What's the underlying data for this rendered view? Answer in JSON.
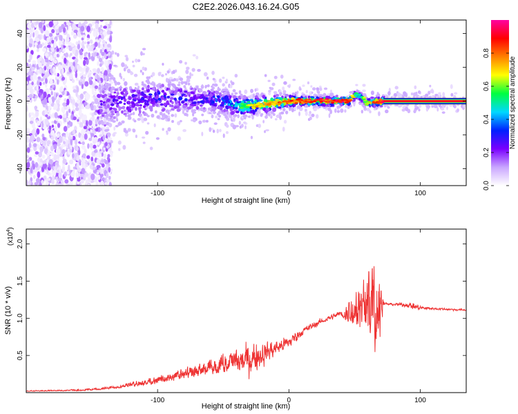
{
  "title": "C2E2.2026.043.16.24.G05",
  "chart_data": [
    {
      "type": "heatmap",
      "name": "spectrogram",
      "xlabel": "Height of straight line (km)",
      "ylabel": "Frequency (Hz)",
      "xlim": [
        -200,
        135
      ],
      "ylim": [
        -50,
        48
      ],
      "x_ticks": [
        -100,
        0,
        100
      ],
      "y_ticks": [
        -40,
        -20,
        0,
        20,
        40
      ],
      "colorbar": {
        "label": "Normalized spectral amplitude",
        "range": [
          0,
          1
        ],
        "ticks": [
          0.0,
          0.2,
          0.4,
          0.6,
          0.8
        ],
        "tick_labels": [
          "0.0",
          "0.2",
          "0.4",
          "0.6",
          "0.8"
        ],
        "colors": [
          "#ffffff",
          "#c9a6ff",
          "#7a00ff",
          "#0020ff",
          "#00d8ff",
          "#00ff40",
          "#ffff00",
          "#ff8000",
          "#ff0000",
          "#ff00a0"
        ]
      },
      "ridge": {
        "description": "dominant frequency ridge near 0 Hz",
        "x": [
          -145,
          -100,
          -60,
          -35,
          -20,
          0,
          20,
          45,
          52,
          60,
          72,
          135
        ],
        "y": [
          -2,
          2,
          1,
          -3,
          -2,
          0,
          0,
          0,
          4,
          -1,
          0,
          0
        ],
        "peak_amplitude": [
          0.25,
          0.35,
          0.35,
          0.6,
          0.8,
          0.85,
          0.95,
          0.95,
          0.5,
          0.7,
          1.0,
          1.0
        ]
      }
    },
    {
      "type": "line",
      "name": "snr",
      "xlabel": "Height of straight line (km)",
      "ylabel": "SNR (10 * v/v)",
      "y_multiplier": "(x10⁴)",
      "y_multiplier_base": "(x10",
      "y_multiplier_exp": "4",
      "y_multiplier_close": ")",
      "xlim": [
        -200,
        135
      ],
      "ylim": [
        0,
        2.2
      ],
      "x_ticks": [
        -100,
        0,
        100
      ],
      "y_ticks": [
        0.5,
        1.0,
        1.5,
        2.0
      ],
      "y_tick_labels": [
        "0.5",
        "1.0",
        "1.5",
        "2.0"
      ],
      "color": "#ee3333",
      "envelope": {
        "x": [
          -200,
          -160,
          -140,
          -120,
          -100,
          -80,
          -60,
          -40,
          -30,
          -20,
          -10,
          0,
          10,
          20,
          30,
          40,
          50,
          55,
          60,
          65,
          70,
          72,
          75,
          90,
          95,
          100,
          110,
          135
        ],
        "mean": [
          0.02,
          0.03,
          0.05,
          0.1,
          0.15,
          0.22,
          0.3,
          0.4,
          0.45,
          0.52,
          0.6,
          0.68,
          0.82,
          0.92,
          1.0,
          1.07,
          1.12,
          1.13,
          1.15,
          1.15,
          1.14,
          1.2,
          1.19,
          1.18,
          1.16,
          1.14,
          1.13,
          1.11
        ],
        "spread": [
          0.01,
          0.02,
          0.03,
          0.06,
          0.1,
          0.14,
          0.2,
          0.28,
          0.3,
          0.22,
          0.15,
          0.12,
          0.08,
          0.06,
          0.05,
          0.06,
          0.35,
          0.5,
          0.6,
          0.85,
          0.5,
          0.05,
          0.02,
          0.04,
          0.07,
          0.04,
          0.02,
          0.02
        ]
      }
    }
  ]
}
